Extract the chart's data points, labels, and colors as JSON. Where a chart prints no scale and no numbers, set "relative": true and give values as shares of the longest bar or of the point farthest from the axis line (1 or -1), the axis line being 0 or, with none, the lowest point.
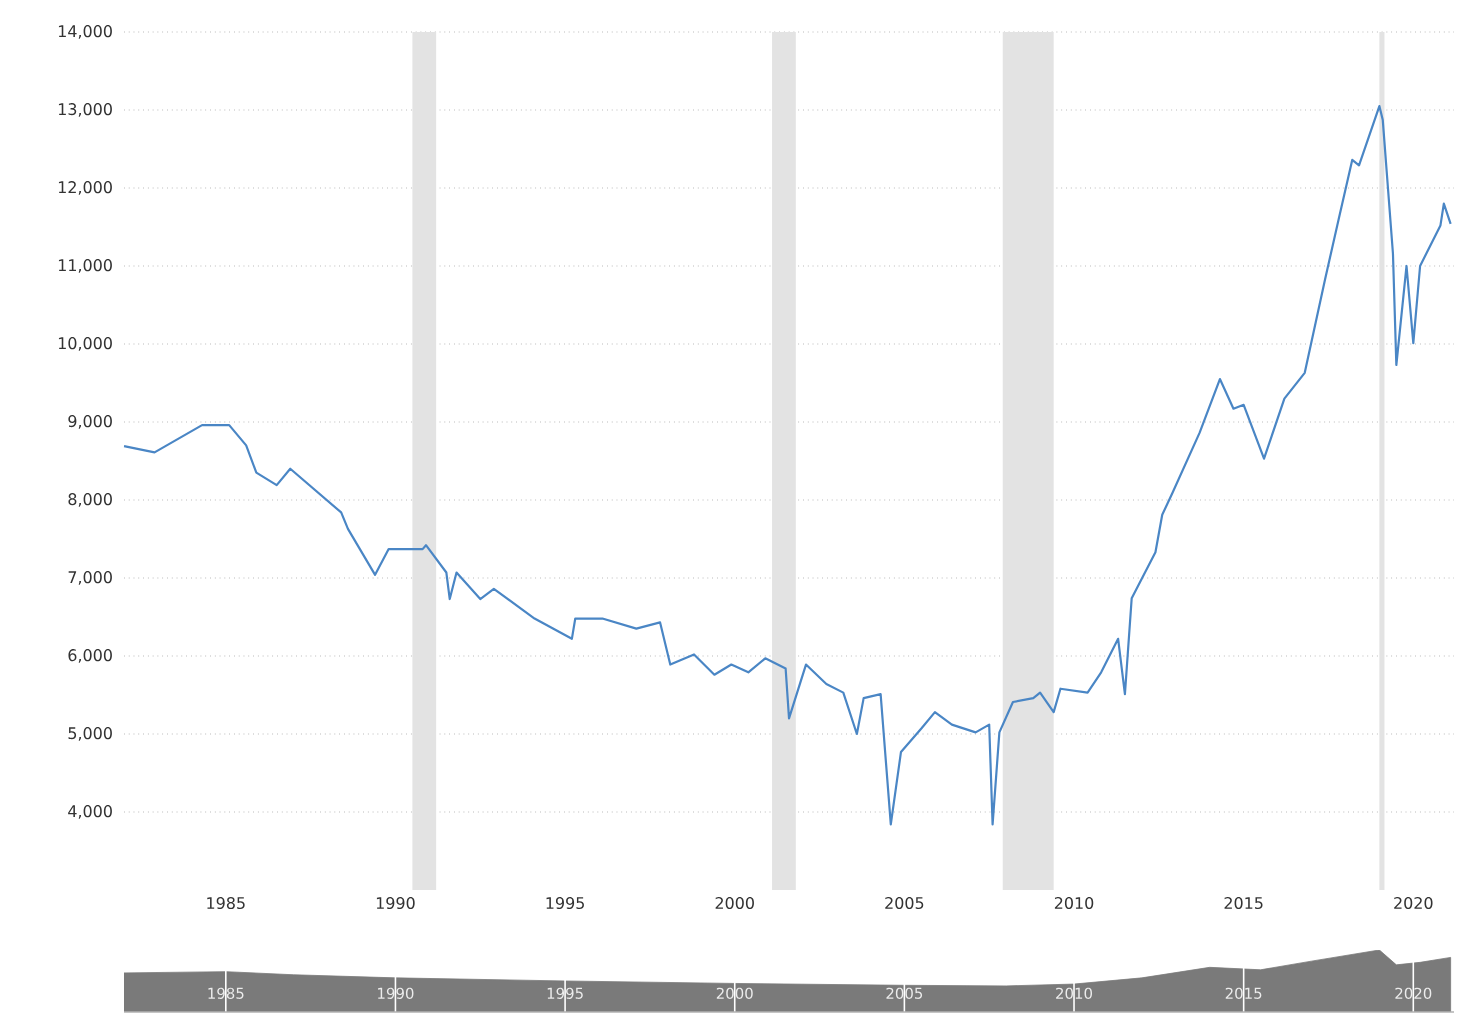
{
  "chart_data": [
    {
      "type": "line",
      "x": [
        1982.0,
        1982.9,
        1984.3,
        1985.1,
        1985.6,
        1985.9,
        1986.5,
        1986.9,
        1988.4,
        1988.6,
        1989.4,
        1989.8,
        1990.8,
        1990.9,
        1991.5,
        1991.6,
        1991.8,
        1992.5,
        1992.9,
        1994.1,
        1995.2,
        1995.3,
        1996.1,
        1997.1,
        1997.8,
        1998.1,
        1998.8,
        1999.4,
        1999.9,
        2000.4,
        2000.9,
        2001.5,
        2001.6,
        2002.1,
        2002.7,
        2003.2,
        2003.6,
        2003.8,
        2004.3,
        2004.6,
        2004.9,
        2005.5,
        2005.9,
        2006.4,
        2007.1,
        2007.5,
        2007.6,
        2007.8,
        2008.2,
        2008.8,
        2009.0,
        2009.4,
        2009.6,
        2010.4,
        2010.8,
        2011.3,
        2011.5,
        2011.7,
        2012.4,
        2012.6,
        2012.9,
        2013.7,
        2014.3,
        2014.7,
        2015.0,
        2015.6,
        2016.2,
        2016.8,
        2017.4,
        2017.8,
        2018.2,
        2018.4,
        2019.0,
        2019.1,
        2019.4,
        2019.5,
        2019.8,
        2020.0,
        2020.2,
        2020.8,
        2020.9,
        2021.1
      ],
      "values": [
        8690,
        8610,
        8960,
        8960,
        8700,
        8350,
        8190,
        8400,
        7840,
        7630,
        7040,
        7370,
        7370,
        7420,
        7070,
        6730,
        7070,
        6730,
        6860,
        6480,
        6220,
        6480,
        6480,
        6350,
        6430,
        5890,
        6020,
        5760,
        5890,
        5790,
        5970,
        5840,
        5200,
        5890,
        5640,
        5530,
        5000,
        5460,
        5510,
        3840,
        4770,
        5070,
        5280,
        5120,
        5020,
        5120,
        3840,
        5020,
        5410,
        5460,
        5530,
        5280,
        5580,
        5530,
        5790,
        6220,
        5510,
        6740,
        7330,
        7810,
        8090,
        8860,
        9550,
        9170,
        9220,
        8530,
        9300,
        9630,
        10830,
        11600,
        12360,
        12290,
        13050,
        12870,
        11160,
        9730,
        11000,
        10010,
        11000,
        11520,
        11800,
        11540
      ],
      "color": "#4a86c5",
      "xlim": [
        1982,
        2021.2
      ],
      "ylim": [
        3000,
        14000
      ],
      "xticks": [
        1985,
        1990,
        1995,
        2000,
        2005,
        2010,
        2015,
        2020
      ],
      "yticks": [
        {
          "value": 4000,
          "label": "4,000"
        },
        {
          "value": 5000,
          "label": "5,000"
        },
        {
          "value": 6000,
          "label": "6,000"
        },
        {
          "value": 7000,
          "label": "7,000"
        },
        {
          "value": 8000,
          "label": "8,000"
        },
        {
          "value": 9000,
          "label": "9,000"
        },
        {
          "value": 10000,
          "label": "10,000"
        },
        {
          "value": 11000,
          "label": "11,000"
        },
        {
          "value": 12000,
          "label": "12,000"
        },
        {
          "value": 13000,
          "label": "13,000"
        },
        {
          "value": 14000,
          "label": "14,000"
        }
      ],
      "grid": "y",
      "bands": [
        {
          "axis": "x",
          "from": 1990.5,
          "to": 1991.2,
          "color": "#e3e3e3"
        },
        {
          "axis": "x",
          "from": 2001.1,
          "to": 2001.8,
          "color": "#e3e3e3"
        },
        {
          "axis": "x",
          "from": 2007.9,
          "to": 2009.4,
          "color": "#e3e3e3"
        },
        {
          "axis": "x",
          "from": 2019.0,
          "to": 2019.15,
          "color": "#e3e3e3"
        }
      ]
    },
    {
      "type": "area",
      "relative": true,
      "x": [
        1982.0,
        1985.0,
        1987.0,
        1990.0,
        1995.0,
        2000.0,
        2005.0,
        2008.0,
        2010.0,
        2012.0,
        2014.0,
        2015.5,
        2017.0,
        2019.0,
        2019.5,
        2020.2,
        2021.1
      ],
      "values": [
        0.63,
        0.65,
        0.6,
        0.55,
        0.5,
        0.46,
        0.43,
        0.42,
        0.45,
        0.55,
        0.72,
        0.68,
        0.82,
        1.0,
        0.76,
        0.8,
        0.88
      ],
      "color": "#7a7a7a",
      "xlim": [
        1982,
        2021.2
      ],
      "xticks": [
        1985,
        1990,
        1995,
        2000,
        2005,
        2010,
        2015,
        2020
      ],
      "grid": "x",
      "tick_labels": "x"
    }
  ]
}
